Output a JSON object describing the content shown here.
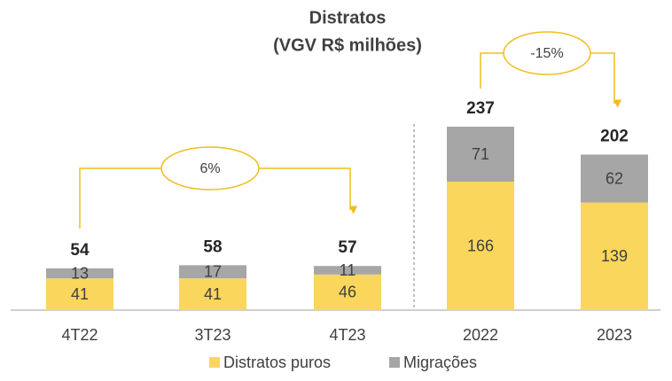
{
  "chart_data": {
    "type": "stacked_bar",
    "title": "Distratos",
    "subtitle": "(VGV R$ milhões)",
    "categories": [
      "4T22",
      "3T23",
      "4T23",
      "2022",
      "2023"
    ],
    "series": [
      {
        "name": "Distratos puros",
        "color": "#fad65c",
        "values": [
          41,
          41,
          46,
          166,
          139
        ]
      },
      {
        "name": "Migrações",
        "color": "#a6a6a6",
        "values": [
          13,
          17,
          11,
          71,
          62
        ]
      }
    ],
    "totals": [
      54,
      58,
      57,
      237,
      202
    ],
    "annotations": [
      "6%",
      "-15%"
    ]
  }
}
